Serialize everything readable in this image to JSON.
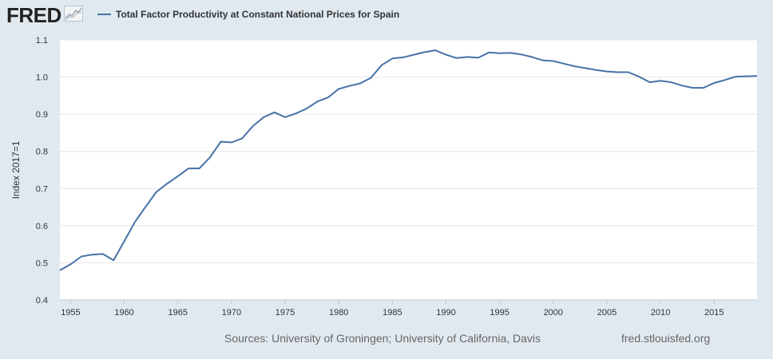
{
  "header": {
    "logo_text": "FRED",
    "logo_icon": "line-chart-icon",
    "legend_label": "Total Factor Productivity at Constant National Prices for Spain"
  },
  "footer": {
    "sources": "Sources: University of Groningen; University of California, Davis",
    "site": "fred.stlouisfed.org"
  },
  "colors": {
    "series": "#4572a7",
    "background": "#e1e9f0",
    "plot_background": "#ffffff"
  },
  "chart_data": {
    "type": "line",
    "ylabel": "Index 2017=1",
    "xlabel": "",
    "ylim": [
      0.4,
      1.1
    ],
    "xlim": [
      1954,
      2019
    ],
    "y_ticks": [
      "0.4",
      "0.5",
      "0.6",
      "0.7",
      "0.8",
      "0.9",
      "1.0",
      "1.1"
    ],
    "x_ticks": [
      "1955",
      "1960",
      "1965",
      "1970",
      "1975",
      "1980",
      "1985",
      "1990",
      "1995",
      "2000",
      "2005",
      "2010",
      "2015"
    ],
    "grid": "horizontal",
    "legend": "top-left",
    "series": [
      {
        "name": "Total Factor Productivity at Constant National Prices for Spain",
        "x": [
          1954,
          1955,
          1956,
          1957,
          1958,
          1959,
          1960,
          1961,
          1962,
          1963,
          1964,
          1965,
          1966,
          1967,
          1968,
          1969,
          1970,
          1971,
          1972,
          1973,
          1974,
          1975,
          1976,
          1977,
          1978,
          1979,
          1980,
          1981,
          1982,
          1983,
          1984,
          1985,
          1986,
          1987,
          1988,
          1989,
          1990,
          1991,
          1992,
          1993,
          1994,
          1995,
          1996,
          1997,
          1998,
          1999,
          2000,
          2001,
          2002,
          2003,
          2004,
          2005,
          2006,
          2007,
          2008,
          2009,
          2010,
          2011,
          2012,
          2013,
          2014,
          2015,
          2016,
          2017,
          2018,
          2019
        ],
        "values": [
          0.48,
          0.496,
          0.517,
          0.522,
          0.524,
          0.507,
          0.558,
          0.61,
          0.651,
          0.691,
          0.713,
          0.733,
          0.754,
          0.754,
          0.784,
          0.826,
          0.824,
          0.835,
          0.868,
          0.892,
          0.905,
          0.892,
          0.902,
          0.915,
          0.934,
          0.945,
          0.968,
          0.976,
          0.983,
          0.998,
          1.032,
          1.05,
          1.053,
          1.06,
          1.067,
          1.072,
          1.06,
          1.051,
          1.054,
          1.052,
          1.066,
          1.064,
          1.065,
          1.061,
          1.054,
          1.045,
          1.043,
          1.036,
          1.029,
          1.024,
          1.019,
          1.015,
          1.013,
          1.013,
          1.001,
          0.986,
          0.99,
          0.986,
          0.977,
          0.971,
          0.971,
          0.984,
          0.992,
          1.001,
          1.002,
          1.003
        ]
      }
    ]
  }
}
